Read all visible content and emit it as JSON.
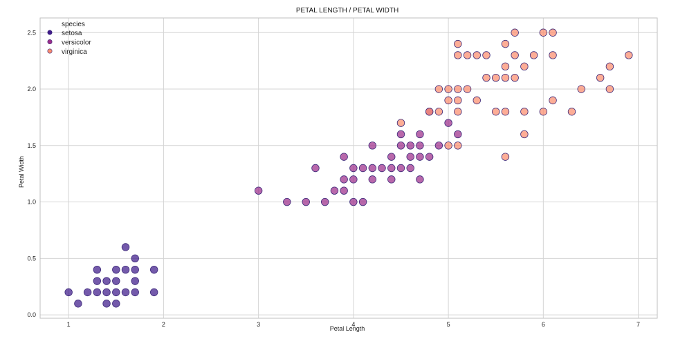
{
  "chart_data": {
    "type": "scatter",
    "title": "PETAL LENGTH / PETAL WIDTH",
    "xlabel": "Petal Length",
    "ylabel": "Petal Width",
    "xlim": [
      0.7,
      7.2
    ],
    "ylim": [
      -0.03,
      2.63
    ],
    "xticks": [
      1,
      2,
      3,
      4,
      5,
      6,
      7
    ],
    "yticks": [
      0.0,
      0.5,
      1.0,
      1.5,
      2.0,
      2.5
    ],
    "grid": true,
    "legend": {
      "title": "species",
      "position": "top-left"
    },
    "series": [
      {
        "name": "setosa",
        "color": "#3f1a8a",
        "points": [
          [
            1.0,
            0.2
          ],
          [
            1.1,
            0.1
          ],
          [
            1.2,
            0.2
          ],
          [
            1.3,
            0.2
          ],
          [
            1.3,
            0.3
          ],
          [
            1.3,
            0.4
          ],
          [
            1.4,
            0.1
          ],
          [
            1.4,
            0.2
          ],
          [
            1.4,
            0.3
          ],
          [
            1.5,
            0.1
          ],
          [
            1.5,
            0.2
          ],
          [
            1.5,
            0.3
          ],
          [
            1.5,
            0.4
          ],
          [
            1.6,
            0.2
          ],
          [
            1.6,
            0.4
          ],
          [
            1.6,
            0.6
          ],
          [
            1.7,
            0.2
          ],
          [
            1.7,
            0.3
          ],
          [
            1.7,
            0.4
          ],
          [
            1.7,
            0.5
          ],
          [
            1.9,
            0.2
          ],
          [
            1.9,
            0.4
          ]
        ]
      },
      {
        "name": "versicolor",
        "color": "#9c2e8a",
        "points": [
          [
            3.0,
            1.1
          ],
          [
            3.3,
            1.0
          ],
          [
            3.5,
            1.0
          ],
          [
            3.6,
            1.3
          ],
          [
            3.7,
            1.0
          ],
          [
            3.8,
            1.1
          ],
          [
            3.9,
            1.1
          ],
          [
            3.9,
            1.2
          ],
          [
            3.9,
            1.4
          ],
          [
            4.0,
            1.0
          ],
          [
            4.0,
            1.2
          ],
          [
            4.0,
            1.3
          ],
          [
            4.1,
            1.0
          ],
          [
            4.1,
            1.3
          ],
          [
            4.2,
            1.2
          ],
          [
            4.2,
            1.3
          ],
          [
            4.2,
            1.5
          ],
          [
            4.3,
            1.3
          ],
          [
            4.4,
            1.2
          ],
          [
            4.4,
            1.3
          ],
          [
            4.4,
            1.4
          ],
          [
            4.5,
            1.3
          ],
          [
            4.5,
            1.5
          ],
          [
            4.5,
            1.6
          ],
          [
            4.6,
            1.3
          ],
          [
            4.6,
            1.4
          ],
          [
            4.6,
            1.5
          ],
          [
            4.7,
            1.2
          ],
          [
            4.7,
            1.4
          ],
          [
            4.7,
            1.5
          ],
          [
            4.7,
            1.6
          ],
          [
            4.8,
            1.4
          ],
          [
            4.8,
            1.8
          ],
          [
            4.9,
            1.5
          ],
          [
            5.0,
            1.7
          ],
          [
            5.1,
            1.6
          ]
        ]
      },
      {
        "name": "virginica",
        "color": "#fc8d6e",
        "points": [
          [
            4.5,
            1.7
          ],
          [
            4.8,
            1.8
          ],
          [
            4.9,
            1.8
          ],
          [
            4.9,
            2.0
          ],
          [
            5.0,
            1.5
          ],
          [
            5.0,
            1.9
          ],
          [
            5.0,
            2.0
          ],
          [
            5.1,
            1.5
          ],
          [
            5.1,
            1.8
          ],
          [
            5.1,
            1.9
          ],
          [
            5.1,
            2.0
          ],
          [
            5.1,
            2.3
          ],
          [
            5.1,
            2.4
          ],
          [
            5.2,
            2.0
          ],
          [
            5.2,
            2.3
          ],
          [
            5.3,
            1.9
          ],
          [
            5.3,
            2.3
          ],
          [
            5.4,
            2.1
          ],
          [
            5.4,
            2.3
          ],
          [
            5.5,
            1.8
          ],
          [
            5.5,
            2.1
          ],
          [
            5.6,
            1.4
          ],
          [
            5.6,
            1.8
          ],
          [
            5.6,
            2.1
          ],
          [
            5.6,
            2.2
          ],
          [
            5.6,
            2.4
          ],
          [
            5.7,
            2.1
          ],
          [
            5.7,
            2.3
          ],
          [
            5.7,
            2.5
          ],
          [
            5.8,
            1.6
          ],
          [
            5.8,
            1.8
          ],
          [
            5.8,
            2.2
          ],
          [
            5.9,
            2.3
          ],
          [
            6.0,
            1.8
          ],
          [
            6.0,
            2.5
          ],
          [
            6.1,
            1.9
          ],
          [
            6.1,
            2.3
          ],
          [
            6.1,
            2.5
          ],
          [
            6.3,
            1.8
          ],
          [
            6.4,
            2.0
          ],
          [
            6.6,
            2.1
          ],
          [
            6.7,
            2.0
          ],
          [
            6.7,
            2.2
          ],
          [
            6.9,
            2.3
          ]
        ]
      }
    ]
  }
}
